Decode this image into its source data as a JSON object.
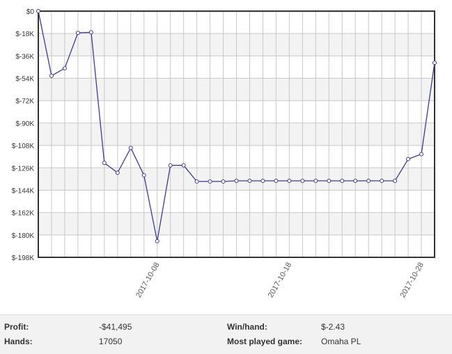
{
  "chart_data": {
    "type": "line",
    "title": "",
    "xlabel": "",
    "ylabel": "",
    "ylim": [
      -198000,
      0
    ],
    "yticks": [
      0,
      -18000,
      -36000,
      -54000,
      -72000,
      -90000,
      -108000,
      -126000,
      -144000,
      -162000,
      -180000,
      -198000
    ],
    "ytick_labels": [
      "$0",
      "$-18K",
      "$-36K",
      "$-54K",
      "$-72K",
      "$-90K",
      "$-108K",
      "$-126K",
      "$-144K",
      "$-162K",
      "$-180K",
      "$-198K"
    ],
    "xticks": [
      {
        "index": 9,
        "label": "2017-10-08"
      },
      {
        "index": 19,
        "label": "2017-10-18"
      },
      {
        "index": 29,
        "label": "2017-10-28"
      }
    ],
    "grid": true,
    "series": [
      {
        "values": [
          0,
          -52000,
          -46000,
          -17500,
          -17000,
          -122000,
          -130000,
          -110000,
          -132000,
          -185000,
          -124000,
          -124000,
          -137000,
          -137000,
          -137000,
          -136500,
          -136500,
          -136500,
          -136500,
          -136500,
          -136500,
          -136500,
          -136500,
          -136500,
          -136500,
          -136500,
          -136500,
          -136500,
          -119000,
          -115000,
          -41500
        ],
        "color": "#3b3b8f"
      }
    ]
  },
  "stats": {
    "profit_label": "Profit:",
    "profit_value": "-$41,495",
    "hands_label": "Hands:",
    "hands_value": "17050",
    "winhand_label": "Win/hand:",
    "winhand_value": "$-2.43",
    "game_label": "Most played game:",
    "game_value": "Omaha PL"
  },
  "colors": {
    "line": "#3b3b8f",
    "band": "#f3f3f3",
    "grid": "#c8c8c8",
    "frame": "#333333"
  }
}
